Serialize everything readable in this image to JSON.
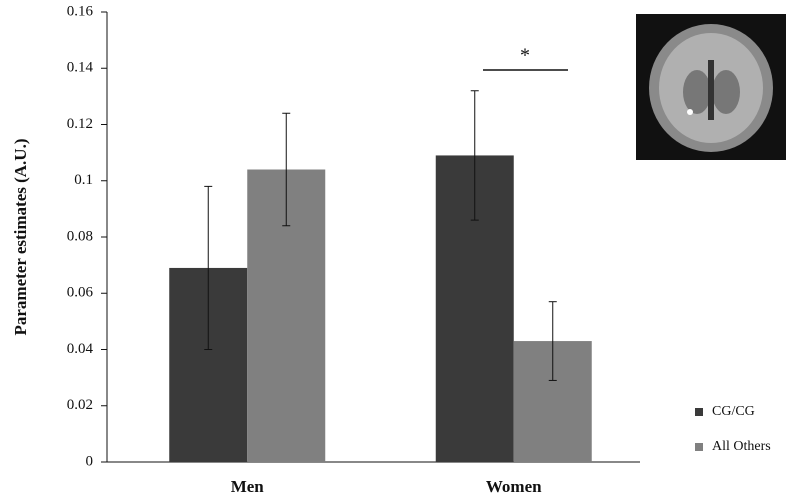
{
  "chart_data": {
    "type": "bar",
    "y_label": "Parameter estimates (A.U.)",
    "categories": [
      "Men",
      "Women"
    ],
    "series": [
      {
        "name": "CG/CG",
        "color": "#3a3a3a",
        "values": [
          0.069,
          0.109
        ],
        "errors": [
          0.029,
          0.023
        ]
      },
      {
        "name": "All Others",
        "color": "#808080",
        "values": [
          0.104,
          0.043
        ],
        "errors": [
          0.02,
          0.014
        ]
      }
    ],
    "ylim": [
      0,
      0.16
    ],
    "yticks": [
      0,
      0.02,
      0.04,
      0.06,
      0.08,
      0.1,
      0.12,
      0.14,
      0.16
    ],
    "annotation": "*"
  }
}
